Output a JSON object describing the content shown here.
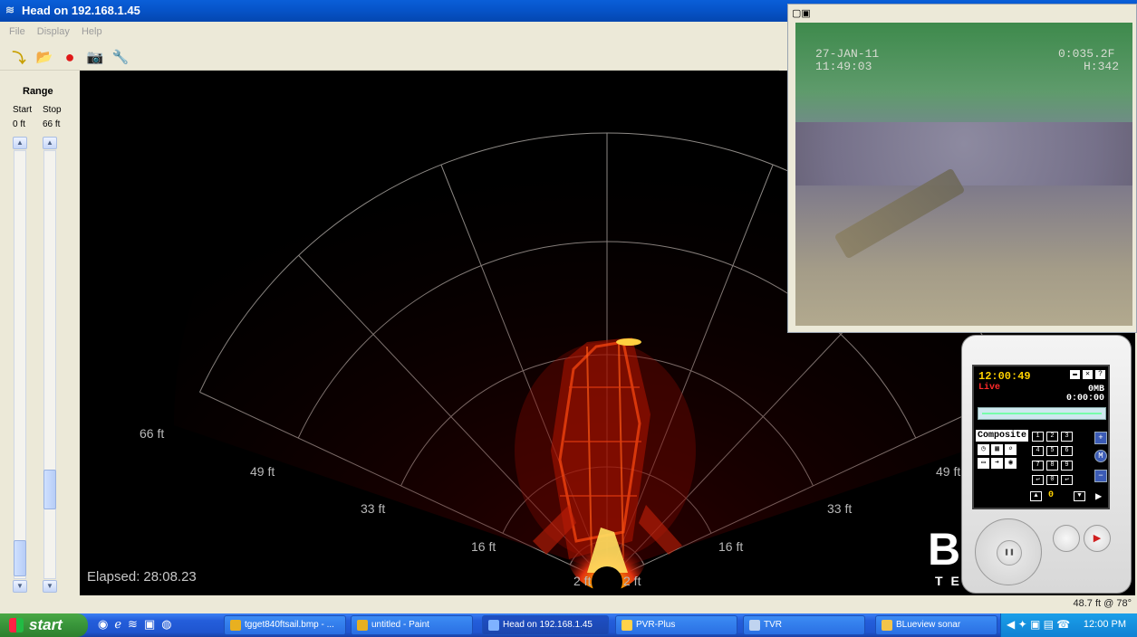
{
  "window": {
    "title": "Head on 192.168.1.45",
    "menu": [
      "File",
      "Display",
      "Help"
    ]
  },
  "toolbar": {
    "items": [
      {
        "name": "connect-icon",
        "glyph": "⤵"
      },
      {
        "name": "open-folder-icon",
        "glyph": "📂"
      },
      {
        "name": "record-icon",
        "glyph": "●"
      },
      {
        "name": "snapshot-icon",
        "glyph": "📷"
      },
      {
        "name": "settings-wrench-icon",
        "glyph": "🔧"
      }
    ]
  },
  "range": {
    "title": "Range",
    "start_label": "Start",
    "stop_label": "Stop",
    "start_value": "0 ft",
    "stop_value": "66 ft"
  },
  "sonar": {
    "range_labels": [
      "66 ft",
      "49 ft",
      "33 ft",
      "16 ft",
      "2 ft"
    ],
    "elapsed_label": "Elapsed:",
    "elapsed_value": "28:08.23",
    "brand_logo": "Bl",
    "brand_sub": "TE"
  },
  "status": {
    "heading_readout": "48.7 ft @ 78°"
  },
  "camera": {
    "date": "27-JAN-11",
    "time": "11:49:03",
    "depth": "0:035.2F",
    "heading": "H:342"
  },
  "pvr": {
    "time": "12:00:49",
    "live": "Live",
    "size": "0MB",
    "duration": "0:00:00",
    "source": "Composite",
    "keys": [
      "1",
      "2",
      "3",
      "4",
      "5",
      "6",
      "7",
      "8",
      "9",
      "↵",
      "0",
      "↵"
    ],
    "counter": "0"
  },
  "taskbar": {
    "start_label": "start",
    "tasks": [
      {
        "label": "tgget840ftsail.bmp - ...",
        "color": "#e8b020"
      },
      {
        "label": "untitled - Paint",
        "color": "#e8b020"
      },
      {
        "label": "Head on 192.168.1.45",
        "color": "#7fb2ff"
      },
      {
        "label": "PVR-Plus",
        "color": "#ffd24a"
      },
      {
        "label": "TVR",
        "color": "#c0d4f0"
      },
      {
        "label": "BLueview sonar",
        "color": "#f3c44a"
      }
    ],
    "clock": "12:00 PM"
  }
}
